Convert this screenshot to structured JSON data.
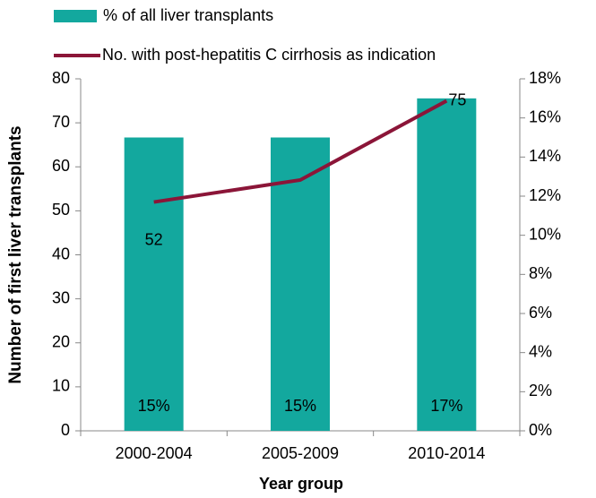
{
  "chart_data": {
    "type": "bar-line",
    "categories": [
      "2000-2004",
      "2005-2009",
      "2010-2014"
    ],
    "series": [
      {
        "name": "% of all liver transplants",
        "type": "bar",
        "axis": "y2",
        "color": "#13a89e",
        "values": [
          15,
          15,
          17
        ],
        "value_labels": [
          "15%",
          "15%",
          "17%"
        ]
      },
      {
        "name": "No. with post-hepatitis C cirrhosis as indication",
        "type": "line",
        "axis": "y",
        "color": "#8b1538",
        "values": [
          52,
          57,
          75
        ],
        "value_labels": [
          "52",
          null,
          "75"
        ]
      }
    ],
    "ylabel": "Number of first liver transplants",
    "xlabel": "Year group",
    "ylim": [
      0,
      80
    ],
    "yticks": [
      0,
      10,
      20,
      30,
      40,
      50,
      60,
      70,
      80
    ],
    "y2lim": [
      0,
      18
    ],
    "y2ticks": [
      {
        "value": 0,
        "label": "0%"
      },
      {
        "value": 2,
        "label": "2%"
      },
      {
        "value": 4,
        "label": "4%"
      },
      {
        "value": 6,
        "label": "6%"
      },
      {
        "value": 8,
        "label": "8%"
      },
      {
        "value": 10,
        "label": "10%"
      },
      {
        "value": 12,
        "label": "12%"
      },
      {
        "value": 14,
        "label": "14%"
      },
      {
        "value": 16,
        "label": "16%"
      },
      {
        "value": 18,
        "label": "18%"
      }
    ],
    "y2color": "#1aae9f",
    "ycolor": "#8b1538"
  }
}
